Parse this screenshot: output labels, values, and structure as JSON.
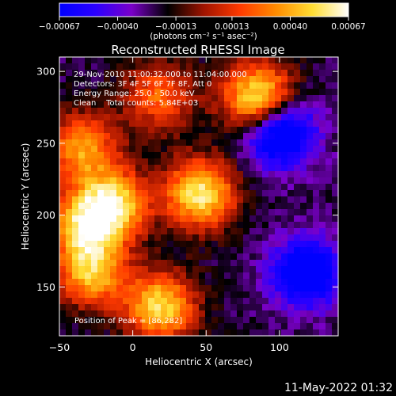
{
  "chart_data": [
    {
      "type": "colorbar",
      "ticks": [
        -0.00067,
        -0.0004,
        -0.00013,
        0.00013,
        0.0004,
        0.00067
      ],
      "tick_labels": [
        "−0.00067",
        "−0.00040",
        "−0.00013",
        "0.00013",
        "0.00040",
        "0.00067"
      ],
      "range": [
        -0.00067,
        0.00067
      ],
      "label": "(photons cm⁻² s⁻¹ asec⁻²)",
      "colors": [
        "#0000ff",
        "#2b00ff",
        "#7a00c8",
        "#000000",
        "#a01400",
        "#ff3a00",
        "#ff8c00",
        "#ffdd33",
        "#ffffff"
      ]
    },
    {
      "type": "heatmap",
      "title": "Reconstructed RHESSI Image",
      "xlabel": "Heliocentric X (arcsec)",
      "ylabel": "Heliocentric Y (arcsec)",
      "xlim": [
        -50,
        140
      ],
      "ylim": [
        116,
        310
      ],
      "xticks": [
        -50,
        0,
        50,
        100
      ],
      "yticks": [
        150,
        200,
        250,
        300
      ],
      "xtick_labels": [
        "−50",
        "0",
        "50",
        "100"
      ],
      "ytick_labels": [
        "150",
        "200",
        "250",
        "300"
      ],
      "peak": [
        86,
        282
      ],
      "sources": [
        {
          "x": 86,
          "y": 281,
          "flux": 0.00067
        },
        {
          "x": 46,
          "y": 215,
          "flux": 0.00058
        },
        {
          "x": 19,
          "y": 136,
          "flux": 0.00052
        },
        {
          "x": -13,
          "y": 208,
          "flux": 0.00049
        },
        {
          "x": -33,
          "y": 193,
          "flux": 0.00041
        },
        {
          "x": -35,
          "y": 247,
          "flux": 0.00037
        },
        {
          "x": -28,
          "y": 160,
          "flux": 0.00042
        },
        {
          "x": 18,
          "y": 283,
          "flux": 0.00024
        },
        {
          "x": 100,
          "y": 258,
          "flux": -0.00055
        },
        {
          "x": 118,
          "y": 160,
          "flux": -0.00044
        }
      ]
    }
  ],
  "annotations": {
    "time_range": "29-Nov-2010 11:00:32.000 to 11:04:00.000",
    "detectors": "Detectors: 3F 4F 5F 6F 7F 8F, Att 0",
    "energy": "Energy Range: 25.0 - 50.0 keV",
    "clean": "Clean    Total counts: 5.84E+03",
    "peak": "Position of Peak = [86,282]"
  },
  "footer": {
    "date": "11-May-2022 01:32"
  }
}
